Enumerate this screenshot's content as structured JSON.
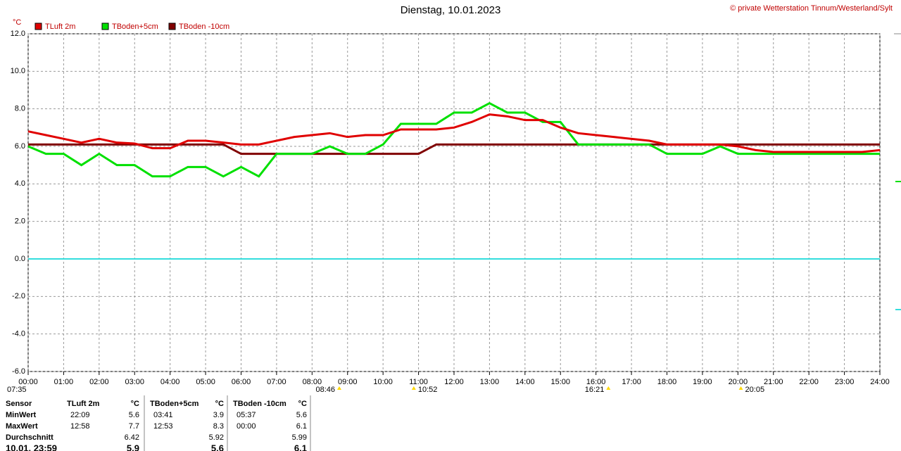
{
  "chart_data": {
    "type": "line",
    "title": "Dienstag, 10.01.2023",
    "copyright": "© private Wetterstation Tinnum/Westerland/Sylt",
    "y_unit": "°C",
    "x": [
      0,
      0.5,
      1,
      1.5,
      2,
      2.5,
      3,
      3.5,
      4,
      4.5,
      5,
      5.5,
      6,
      6.5,
      7,
      7.5,
      8,
      8.5,
      9,
      9.5,
      10,
      10.5,
      11,
      11.5,
      12,
      12.5,
      13,
      13.5,
      14,
      14.5,
      15,
      15.5,
      16,
      16.5,
      17,
      17.5,
      18,
      18.5,
      19,
      19.5,
      20,
      20.5,
      21,
      21.5,
      22,
      22.5,
      23,
      23.5,
      24
    ],
    "series": [
      {
        "name": "TLuft 2m",
        "color": "#e00000",
        "values": [
          6.8,
          6.6,
          6.4,
          6.2,
          6.4,
          6.2,
          6.15,
          5.9,
          5.9,
          6.3,
          6.3,
          6.2,
          6.1,
          6.1,
          6.3,
          6.5,
          6.6,
          6.7,
          6.5,
          6.6,
          6.6,
          6.9,
          6.9,
          6.9,
          7.0,
          7.3,
          7.7,
          7.6,
          7.4,
          7.4,
          7.0,
          6.7,
          6.6,
          6.5,
          6.4,
          6.3,
          6.1,
          6.1,
          6.1,
          6.1,
          6.0,
          5.8,
          5.7,
          5.7,
          5.7,
          5.7,
          5.7,
          5.7,
          5.8
        ]
      },
      {
        "name": "TBoden+5cm",
        "color": "#00e000",
        "values": [
          6.0,
          5.6,
          5.6,
          5.0,
          5.6,
          5.0,
          5.0,
          4.4,
          4.4,
          4.9,
          4.9,
          4.4,
          4.9,
          4.4,
          5.6,
          5.6,
          5.6,
          6.0,
          5.6,
          5.6,
          6.1,
          7.2,
          7.2,
          7.2,
          7.8,
          7.8,
          8.3,
          7.8,
          7.8,
          7.3,
          7.3,
          6.1,
          6.1,
          6.1,
          6.1,
          6.1,
          5.6,
          5.6,
          5.6,
          6.0,
          5.6,
          5.6,
          5.6,
          5.6,
          5.6,
          5.6,
          5.6,
          5.6,
          5.6
        ]
      },
      {
        "name": "TBoden -10cm",
        "color": "#800000",
        "values": [
          6.1,
          6.1,
          6.1,
          6.1,
          6.1,
          6.1,
          6.1,
          6.1,
          6.1,
          6.1,
          6.1,
          6.1,
          5.6,
          5.6,
          5.6,
          5.6,
          5.6,
          5.6,
          5.6,
          5.6,
          5.6,
          5.6,
          5.6,
          6.1,
          6.1,
          6.1,
          6.1,
          6.1,
          6.1,
          6.1,
          6.1,
          6.1,
          6.1,
          6.1,
          6.1,
          6.1,
          6.1,
          6.1,
          6.1,
          6.1,
          6.1,
          6.1,
          6.1,
          6.1,
          6.1,
          6.1,
          6.1,
          6.1,
          6.1
        ]
      }
    ],
    "xlim": [
      0,
      24
    ],
    "xticks": [
      {
        "value": 0,
        "label": "00:00"
      },
      {
        "value": 1,
        "label": "01:00"
      },
      {
        "value": 2,
        "label": "02:00"
      },
      {
        "value": 3,
        "label": "03:00"
      },
      {
        "value": 4,
        "label": "04:00"
      },
      {
        "value": 5,
        "label": "05:00"
      },
      {
        "value": 6,
        "label": "06:00"
      },
      {
        "value": 7,
        "label": "07:00"
      },
      {
        "value": 8,
        "label": "08:00"
      },
      {
        "value": 9,
        "label": "09:00"
      },
      {
        "value": 10,
        "label": "10:00"
      },
      {
        "value": 11,
        "label": "11:00"
      },
      {
        "value": 12,
        "label": "12:00"
      },
      {
        "value": 13,
        "label": "13:00"
      },
      {
        "value": 14,
        "label": "14:00"
      },
      {
        "value": 15,
        "label": "15:00"
      },
      {
        "value": 16,
        "label": "16:00"
      },
      {
        "value": 17,
        "label": "17:00"
      },
      {
        "value": 18,
        "label": "18:00"
      },
      {
        "value": 19,
        "label": "19:00"
      },
      {
        "value": 20,
        "label": "20:00"
      },
      {
        "value": 21,
        "label": "21:00"
      },
      {
        "value": 22,
        "label": "22:00"
      },
      {
        "value": 23,
        "label": "23:00"
      },
      {
        "value": 24,
        "label": "24:00"
      }
    ],
    "ylim": [
      -6,
      12
    ],
    "yticks": [
      {
        "value": -6,
        "label": "-6.0"
      },
      {
        "value": -4,
        "label": "-4.0"
      },
      {
        "value": -2,
        "label": "-2.0"
      },
      {
        "value": 0,
        "label": "0.0"
      },
      {
        "value": 2,
        "label": "2.0"
      },
      {
        "value": 4,
        "label": "4.0"
      },
      {
        "value": 6,
        "label": "6.0"
      },
      {
        "value": 8,
        "label": "8.0"
      },
      {
        "value": 10,
        "label": "10.0"
      },
      {
        "value": 12,
        "label": "12.0"
      }
    ],
    "grid": true,
    "reference_lines": [
      {
        "value": 0,
        "color": "#33dddd"
      }
    ],
    "sun_markers": [
      "07:35",
      "08:46",
      "10:52",
      "16:21",
      "20:05"
    ]
  },
  "table": {
    "header": [
      "Sensor",
      "TLuft 2m",
      "°C",
      "TBoden+5cm",
      "°C",
      "TBoden -10cm",
      "°C"
    ],
    "rows": [
      {
        "label": "MinWert",
        "cells": [
          {
            "time": "22:09",
            "value": 5.6
          },
          {
            "time": "03:41",
            "value": 3.9
          },
          {
            "time": "05:37",
            "value": 5.6
          }
        ]
      },
      {
        "label": "MaxWert",
        "cells": [
          {
            "time": "12:58",
            "value": 7.7
          },
          {
            "time": "12:53",
            "value": 8.3
          },
          {
            "time": "00:00",
            "value": 6.1
          }
        ]
      },
      {
        "label": "Durchschnitt",
        "cells": [
          {
            "value": 6.42
          },
          {
            "value": 5.92
          },
          {
            "value": 5.99
          }
        ]
      },
      {
        "label": "10.01. 23:59",
        "cells": [
          {
            "value": 5.9
          },
          {
            "value": 5.6
          },
          {
            "value": 6.1
          }
        ]
      }
    ]
  }
}
